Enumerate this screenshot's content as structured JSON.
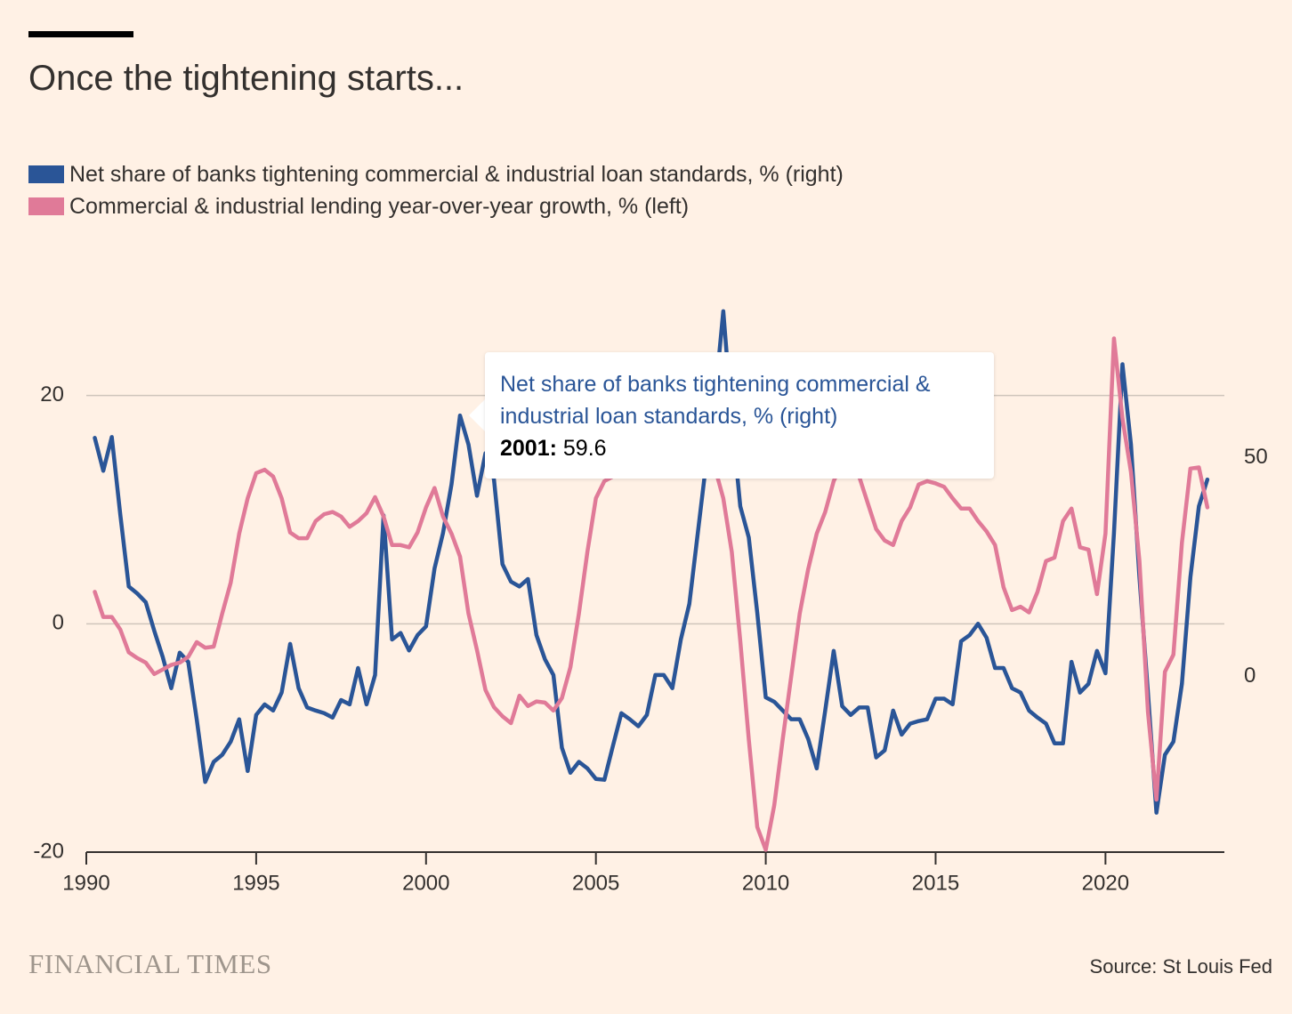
{
  "chart_data": {
    "type": "line",
    "title": "Once the tightening starts...",
    "brand": "FINANCIAL TIMES",
    "source": "Source: St Louis Fed",
    "x": [
      1990.25,
      1990.5,
      1990.75,
      1991,
      1991.25,
      1991.5,
      1991.75,
      1992,
      1992.25,
      1992.5,
      1992.75,
      1993,
      1993.25,
      1993.5,
      1993.75,
      1994,
      1994.25,
      1994.5,
      1994.75,
      1995,
      1995.25,
      1995.5,
      1995.75,
      1996,
      1996.25,
      1996.5,
      1996.75,
      1997,
      1997.25,
      1997.5,
      1997.75,
      1998,
      1998.25,
      1998.5,
      1998.75,
      1999,
      1999.25,
      1999.5,
      1999.75,
      2000,
      2000.25,
      2000.5,
      2000.75,
      2001,
      2001.25,
      2001.5,
      2001.75,
      2002,
      2002.25,
      2002.5,
      2002.75,
      2003,
      2003.25,
      2003.5,
      2003.75,
      2004,
      2004.25,
      2004.5,
      2004.75,
      2005,
      2005.25,
      2005.5,
      2005.75,
      2006,
      2006.25,
      2006.5,
      2006.75,
      2007,
      2007.25,
      2007.5,
      2007.75,
      2008,
      2008.25,
      2008.5,
      2008.75,
      2009,
      2009.25,
      2009.5,
      2009.75,
      2010,
      2010.25,
      2010.5,
      2010.75,
      2011,
      2011.25,
      2011.5,
      2011.75,
      2012,
      2012.25,
      2012.5,
      2012.75,
      2013,
      2013.25,
      2013.5,
      2013.75,
      2014,
      2014.25,
      2014.5,
      2014.75,
      2015,
      2015.25,
      2015.5,
      2015.75,
      2016,
      2016.25,
      2016.5,
      2016.75,
      2017,
      2017.25,
      2017.5,
      2017.75,
      2018,
      2018.25,
      2018.5,
      2018.75,
      2019,
      2019.25,
      2019.5,
      2019.75,
      2020,
      2020.25,
      2020.5,
      2020.75,
      2021,
      2021.25,
      2021.5,
      2021.75,
      2022,
      2022.25,
      2022.5,
      2022.75,
      2023
    ],
    "series": [
      {
        "name": "Net share of banks tightening commercial & industrial loan standards, % (right)",
        "color": "#2a5597",
        "axis": "y2",
        "values": [
          54.5,
          47,
          54.7,
          37,
          20.6,
          19,
          17,
          10.5,
          4.5,
          -2.6,
          5.5,
          3.4,
          -9.7,
          -24,
          -19.4,
          -17.8,
          -14.8,
          -9.7,
          -21.5,
          -8.7,
          -6.3,
          -7.7,
          -3.6,
          7.5,
          -2.6,
          -7,
          -7.7,
          -8.3,
          -9.3,
          -5.3,
          -6.3,
          2,
          -6.3,
          0.4,
          36.8,
          8.5,
          10,
          6,
          9.5,
          11.5,
          24.7,
          32.8,
          43.9,
          59.6,
          53,
          41.3,
          51,
          45,
          25.7,
          21.7,
          20.6,
          22.3,
          9.5,
          4,
          0.4,
          -16.2,
          -21.9,
          -19.4,
          -20.9,
          -23.3,
          -23.5,
          -15.8,
          -8.3,
          -9.7,
          -11.3,
          -8.7,
          0.4,
          0.4,
          -2.6,
          8.5,
          16.6,
          32.8,
          49,
          63,
          83.4,
          59,
          38.9,
          31.8,
          14.6,
          -4.7,
          -5.7,
          -7.7,
          -9.7,
          -9.7,
          -14.2,
          -20.9,
          -7.7,
          5.9,
          -6.7,
          -8.7,
          -7,
          -7,
          -18.4,
          -16.8,
          -7.7,
          -13.2,
          -10.7,
          -10.1,
          -9.7,
          -5,
          -5,
          -6.3,
          8.1,
          9.5,
          12.1,
          8.9,
          2,
          2,
          -2.6,
          -3.6,
          -7.7,
          -9.3,
          -10.7,
          -15.2,
          -15.2,
          3.4,
          -3.6,
          -1.6,
          5.9,
          0.8,
          32.8,
          71.3,
          53,
          22.7,
          -3.6,
          -31,
          -17.8,
          -14.8,
          -1.6,
          22.7,
          38.9,
          45
        ]
      },
      {
        "name": "Commercial & industrial lending year-over-year growth, % (left)",
        "color": "#e07a98",
        "axis": "y",
        "values": [
          2.8,
          0.6,
          0.6,
          -0.5,
          -2.5,
          -3,
          -3.4,
          -4.4,
          -4,
          -3.6,
          -3.4,
          -2.9,
          -1.6,
          -2.1,
          -2,
          0.9,
          3.6,
          7.9,
          11,
          13.2,
          13.5,
          12.9,
          11,
          8,
          7.5,
          7.5,
          9,
          9.6,
          9.8,
          9.4,
          8.5,
          9,
          9.7,
          11.1,
          9.4,
          6.9,
          6.9,
          6.7,
          8,
          10.2,
          11.9,
          9.4,
          7.9,
          5.9,
          0.9,
          -2.3,
          -5.8,
          -7.3,
          -8.1,
          -8.7,
          -6.3,
          -7.2,
          -6.8,
          -6.9,
          -7.6,
          -6.5,
          -3.8,
          0.9,
          6.3,
          11,
          12.5,
          12.9,
          13.1,
          13.3,
          13.3,
          13.2,
          13.1,
          13.2,
          13.5,
          14.1,
          14.9,
          15.7,
          14.9,
          13.7,
          11,
          6.3,
          -1.5,
          -10.1,
          -17.8,
          -19.8,
          -15.9,
          -10.1,
          -4.6,
          0.9,
          4.8,
          7.9,
          9.8,
          12.5,
          14.1,
          13.2,
          12.9,
          10.6,
          8.3,
          7.3,
          6.9,
          9,
          10.2,
          12.2,
          12.5,
          12.3,
          12,
          11,
          10.1,
          10.1,
          9,
          8.1,
          6.9,
          3.2,
          1.2,
          1.5,
          1,
          2.8,
          5.5,
          5.8,
          9,
          10.1,
          6.7,
          6.5,
          2.6,
          7.9,
          25,
          18,
          13.3,
          5.5,
          -7.7,
          -15.4,
          -4.2,
          -2.7,
          7.1,
          13.6,
          13.7,
          10.2
        ]
      }
    ],
    "xlim": [
      1990,
      2023.5
    ],
    "xticks": [
      1990,
      1995,
      2000,
      2005,
      2010,
      2015,
      2020
    ],
    "ylim": [
      -20,
      28
    ],
    "yticks": [
      -20,
      0,
      20
    ],
    "y2lim": [
      -40,
      85
    ],
    "y2ticks": [
      0,
      50
    ],
    "grid": true,
    "tooltip": {
      "label": "2001:",
      "value": 59.6
    }
  }
}
